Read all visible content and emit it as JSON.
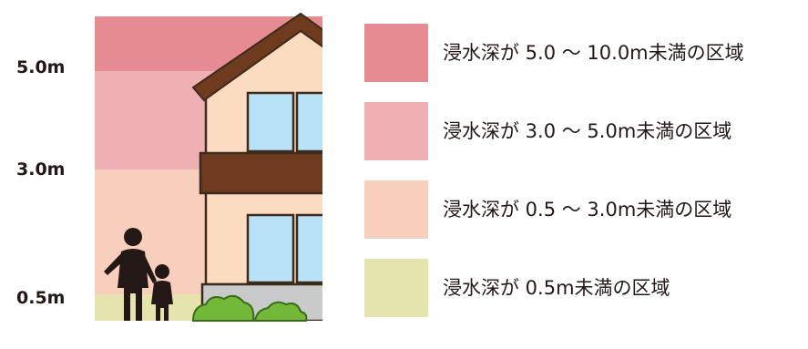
{
  "scale": {
    "labels": [
      "5.0m",
      "3.0m",
      "0.5m"
    ]
  },
  "zones": [
    {
      "label": "浸水深が 5.0 ～ 10.0m未満の区域",
      "color": "#e78b92"
    },
    {
      "label": "浸水深が 3.0 ～ 5.0m未満の区域",
      "color": "#efb0b3"
    },
    {
      "label": "浸水深が 0.5 ～ 3.0m未満の区域",
      "color": "#f8cfbc"
    },
    {
      "label": "浸水深が 0.5m未満の区域",
      "color": "#e6e4ae"
    }
  ],
  "icons": {
    "house": "house-icon",
    "people": "adult-and-child-icon",
    "bushes": "bush-icon"
  }
}
